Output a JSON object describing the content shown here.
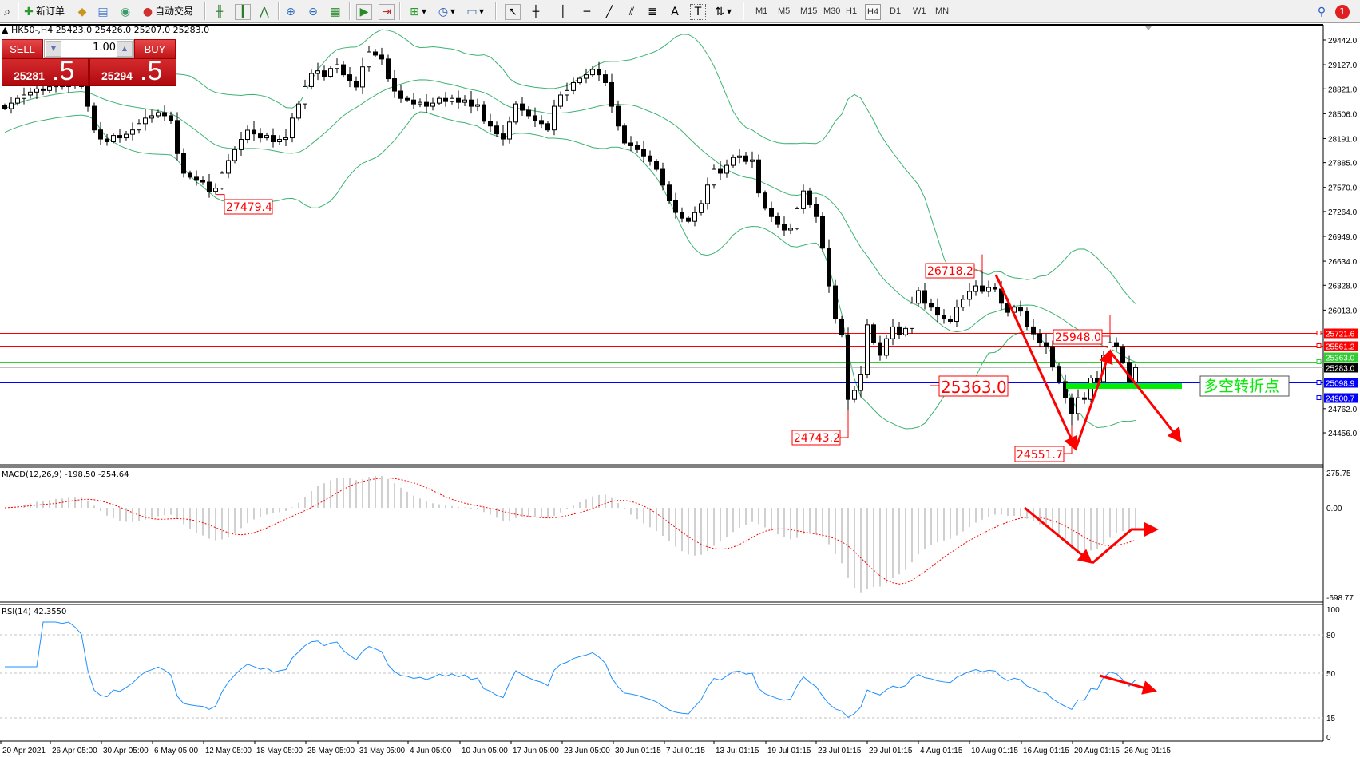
{
  "toolbar": {
    "new_order_label": "新订单",
    "auto_trade_label": "自动交易",
    "timeframes": [
      "M1",
      "M5",
      "M15",
      "M30",
      "H1",
      "H4",
      "D1",
      "W1",
      "MN"
    ],
    "selected_timeframe": "H4",
    "notification_count": "1"
  },
  "chart_header": {
    "symbol": "HK50-,H4",
    "ohlc": "25423.0 25426.0 25207.0 25283.0"
  },
  "trade_panel": {
    "sell_label": "SELL",
    "buy_label": "BUY",
    "lot": "1.00",
    "sell_price_main": "25281",
    "sell_price_frac": ".5",
    "buy_price_main": "25294",
    "buy_price_frac": ".5"
  },
  "price_axis": [
    "29442.0",
    "29127.0",
    "28821.0",
    "28506.0",
    "28191.0",
    "27885.0",
    "27570.0",
    "27264.0",
    "26949.0",
    "26634.0",
    "26328.0",
    "26013.0",
    "24762.0",
    "24456.0"
  ],
  "levels": [
    {
      "price": "25721.6",
      "color": "#ff0000"
    },
    {
      "price": "25561.2",
      "color": "#ff0000"
    },
    {
      "price": "25363.0",
      "color": "#32cd32"
    },
    {
      "price": "25283.0",
      "color": "#000000",
      "line": "#c0c0c0"
    },
    {
      "price": "25098.9",
      "color": "#0000ff"
    },
    {
      "price": "24900.7",
      "color": "#0000ff"
    }
  ],
  "annotations": {
    "low_may": "27479.4",
    "high_aug": "26718.2",
    "low_jul": "24743.2",
    "high_late_aug": "25948.0",
    "low_aug": "24551.7",
    "pivot": "25363.0",
    "pivot_text": "多空转折点"
  },
  "macd": {
    "label": "MACD(12,26,9) -198.50 -254.64",
    "axis": [
      "275.75",
      "0.00",
      "-698.77"
    ]
  },
  "rsi": {
    "label": "RSI(14) 42.3550",
    "axis": [
      "100",
      "80",
      "50",
      "15",
      "0"
    ]
  },
  "time_axis": [
    "20 Apr 2021",
    "26 Apr 05:00",
    "30 Apr 05:00",
    "6 May 05:00",
    "12 May 05:00",
    "18 May 05:00",
    "25 May 05:00",
    "31 May 05:00",
    "4 Jun 05:00",
    "10 Jun 05:00",
    "17 Jun 05:00",
    "23 Jun 05:00",
    "30 Jun 01:15",
    "7 Jul 01:15",
    "13 Jul 01:15",
    "19 Jul 01:15",
    "23 Jul 01:15",
    "29 Jul 01:15",
    "4 Aug 01:15",
    "10 Aug 01:15",
    "16 Aug 01:15",
    "20 Aug 01:15",
    "26 Aug 01:15"
  ],
  "colors": {
    "bands": "#3cb371",
    "macd_signal": "#ff0000",
    "macd_hist": "#c0c0c0",
    "rsi": "#1e90ff",
    "arrows": "#ff0000",
    "pivot_bar": "#00ee00"
  },
  "closes": [
    28570,
    28640,
    28700,
    28743,
    28780,
    28820,
    28800,
    28848,
    28870,
    28850,
    28900,
    28880,
    28850,
    28600,
    28300,
    28185,
    28150,
    28230,
    28200,
    28245,
    28300,
    28380,
    28450,
    28480,
    28520,
    28480,
    28420,
    28000,
    27750,
    27700,
    27660,
    27638,
    27520,
    27560,
    27750,
    27912,
    28050,
    28180,
    28297,
    28250,
    28200,
    28230,
    28150,
    28180,
    28200,
    28450,
    28630,
    28850,
    29016,
    29050,
    28980,
    29080,
    29127,
    29000,
    28920,
    28845,
    29100,
    29290,
    29250,
    29200,
    28950,
    28793,
    28700,
    28680,
    28630,
    28650,
    28600,
    28640,
    28700,
    28660,
    28700,
    28650,
    28680,
    28600,
    28620,
    28410,
    28350,
    28250,
    28185,
    28400,
    28630,
    28550,
    28480,
    28420,
    28380,
    28300,
    28600,
    28743,
    28800,
    28900,
    28955,
    29000,
    29067,
    29000,
    28900,
    28600,
    28350,
    28135,
    28100,
    28050,
    27970,
    27900,
    27800,
    27600,
    27400,
    27253,
    27180,
    27140,
    27250,
    27365,
    27600,
    27800,
    27750,
    27850,
    27950,
    27970,
    27900,
    27920,
    27500,
    27305,
    27200,
    27100,
    27030,
    27050,
    27300,
    27525,
    27350,
    27200,
    26800,
    26320,
    25900,
    25700,
    24880,
    24993,
    25200,
    25826,
    25600,
    25440,
    25650,
    25800,
    25700,
    25780,
    26100,
    26260,
    26100,
    26050,
    25950,
    25900,
    25870,
    26050,
    26150,
    26250,
    26320,
    26250,
    26300,
    26280,
    26100,
    25985,
    26050,
    26000,
    25800,
    25712,
    25600,
    25550,
    25300,
    25105,
    24900,
    24700,
    24900,
    24880,
    25150,
    25105,
    25440,
    25600,
    25550,
    25350,
    25100,
    25283
  ]
}
